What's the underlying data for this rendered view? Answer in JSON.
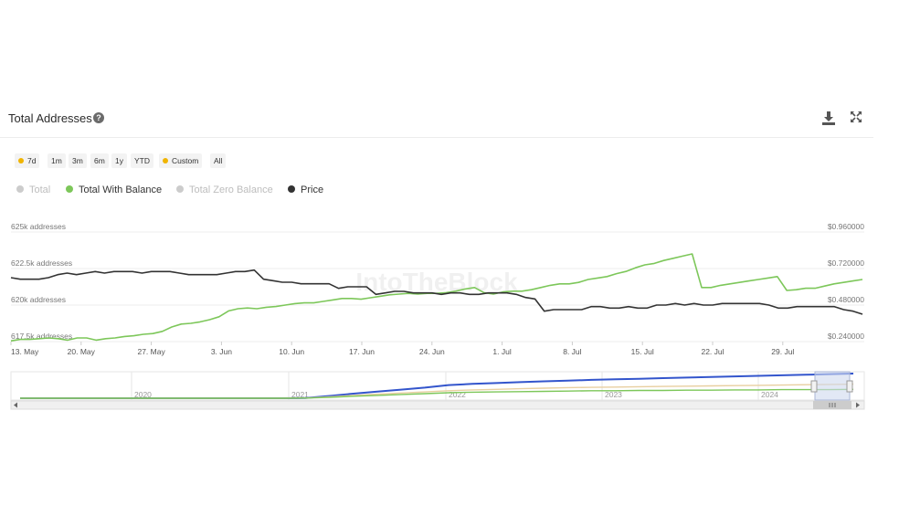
{
  "header": {
    "title": "Total Addresses",
    "help_glyph": "?",
    "icons": [
      "help-icon",
      "download-icon",
      "expand-icon"
    ]
  },
  "ranges": [
    {
      "label": "7d",
      "dot": true
    },
    {
      "label": "1m",
      "dot": false
    },
    {
      "label": "3m",
      "dot": false
    },
    {
      "label": "6m",
      "dot": false
    },
    {
      "label": "1y",
      "dot": false
    },
    {
      "label": "YTD",
      "dot": false
    },
    {
      "label": "Custom",
      "dot": true
    },
    {
      "label": "All",
      "dot": false
    }
  ],
  "legend": [
    {
      "name": "Total",
      "color": "#cccccc",
      "active": false
    },
    {
      "name": "Total With Balance",
      "color": "#7dc75a",
      "active": true
    },
    {
      "name": "Total Zero Balance",
      "color": "#cccccc",
      "active": false
    },
    {
      "name": "Price",
      "color": "#333333",
      "active": true
    }
  ],
  "watermark": "IntoTheBlock",
  "chart_data": {
    "type": "line",
    "x_ticks": [
      "13. May",
      "20. May",
      "27. May",
      "3. Jun",
      "10. Jun",
      "17. Jun",
      "24. Jun",
      "1. Jul",
      "8. Jul",
      "15. Jul",
      "22. Jul",
      "29. Jul"
    ],
    "y_left_ticks": [
      "625k addresses",
      "622.5k addresses",
      "620k addresses",
      "617.5k addresses"
    ],
    "y_left_range": [
      617500,
      625000
    ],
    "y_right_ticks": [
      "$0.960000",
      "$0.720000",
      "$0.480000",
      "$0.240000"
    ],
    "y_right_range": [
      0.24,
      0.96
    ],
    "series": [
      {
        "name": "Total With Balance",
        "axis": "left",
        "color": "#7dc75a",
        "values": [
          617550,
          617650,
          617650,
          617700,
          617750,
          617700,
          617600,
          617750,
          617750,
          617600,
          617700,
          617750,
          617850,
          617900,
          618000,
          618050,
          618200,
          618500,
          618700,
          618750,
          618850,
          619000,
          619200,
          619600,
          619750,
          619800,
          619750,
          619850,
          619900,
          620000,
          620100,
          620150,
          620150,
          620250,
          620350,
          620450,
          620450,
          620400,
          620500,
          620600,
          620700,
          620750,
          620800,
          620750,
          620800,
          620800,
          620850,
          620950,
          621100,
          621200,
          620850,
          620750,
          620900,
          620950,
          620950,
          621050,
          621200,
          621350,
          621450,
          621450,
          621550,
          621750,
          621850,
          621950,
          622150,
          622300,
          622550,
          622750,
          622850,
          623050,
          623200,
          623350,
          623500,
          621200,
          621200,
          621350,
          621450,
          621550,
          621650,
          621750,
          621850,
          621950,
          621000,
          621050,
          621150,
          621150,
          621300,
          621450,
          621550,
          621650,
          621750
        ]
      },
      {
        "name": "Price",
        "axis": "right",
        "color": "#333333",
        "values": [
          0.66,
          0.65,
          0.65,
          0.65,
          0.66,
          0.68,
          0.69,
          0.68,
          0.69,
          0.7,
          0.69,
          0.7,
          0.7,
          0.7,
          0.69,
          0.7,
          0.7,
          0.7,
          0.69,
          0.68,
          0.68,
          0.68,
          0.68,
          0.69,
          0.7,
          0.7,
          0.71,
          0.65,
          0.64,
          0.63,
          0.63,
          0.62,
          0.62,
          0.62,
          0.62,
          0.59,
          0.6,
          0.6,
          0.6,
          0.55,
          0.56,
          0.57,
          0.57,
          0.56,
          0.56,
          0.56,
          0.55,
          0.56,
          0.56,
          0.55,
          0.55,
          0.56,
          0.56,
          0.56,
          0.55,
          0.53,
          0.52,
          0.44,
          0.45,
          0.45,
          0.45,
          0.45,
          0.47,
          0.47,
          0.46,
          0.46,
          0.47,
          0.46,
          0.46,
          0.48,
          0.48,
          0.49,
          0.48,
          0.49,
          0.48,
          0.48,
          0.49,
          0.49,
          0.49,
          0.49,
          0.49,
          0.48,
          0.46,
          0.46,
          0.47,
          0.47,
          0.47,
          0.47,
          0.47,
          0.45,
          0.44,
          0.42
        ]
      }
    ],
    "navigator": {
      "year_labels": [
        "2020",
        "2021",
        "2022",
        "2023",
        "2024"
      ],
      "series": [
        {
          "name": "Total",
          "color": "#3355cc",
          "values": [
            0,
            0,
            0,
            0,
            0,
            0,
            0,
            0,
            0,
            0,
            0,
            0,
            0.1,
            0.8,
            1.6,
            2.3,
            3.0,
            3.7,
            4.6,
            5.0,
            5.3,
            5.6,
            5.9,
            6.1,
            6.4,
            6.6,
            6.8,
            7.0,
            7.2,
            7.4,
            7.6,
            7.8,
            8.0,
            8.2,
            8.4,
            8.6
          ]
        },
        {
          "name": "Total Zero Balance",
          "color": "#e8cfa0",
          "values": [
            0,
            0,
            0,
            0,
            0,
            0,
            0,
            0,
            0,
            0,
            0,
            0,
            0.1,
            0.5,
            1.0,
            1.4,
            1.8,
            2.2,
            2.6,
            2.9,
            3.1,
            3.3,
            3.5,
            3.7,
            3.8,
            3.9,
            4.0,
            4.1,
            4.2,
            4.3,
            4.4,
            4.5,
            4.6,
            4.7,
            4.8,
            4.9
          ]
        },
        {
          "name": "Total With Balance",
          "color": "#7dc75a",
          "values": [
            0,
            0,
            0,
            0,
            0,
            0,
            0,
            0,
            0,
            0,
            0,
            0,
            0.05,
            0.3,
            0.7,
            1.0,
            1.3,
            1.6,
            1.9,
            2.1,
            2.2,
            2.3,
            2.4,
            2.5,
            2.6,
            2.6,
            2.7,
            2.7,
            2.8,
            2.8,
            2.9,
            2.9,
            3.0,
            3.0,
            3.0,
            3.1
          ]
        }
      ]
    }
  }
}
